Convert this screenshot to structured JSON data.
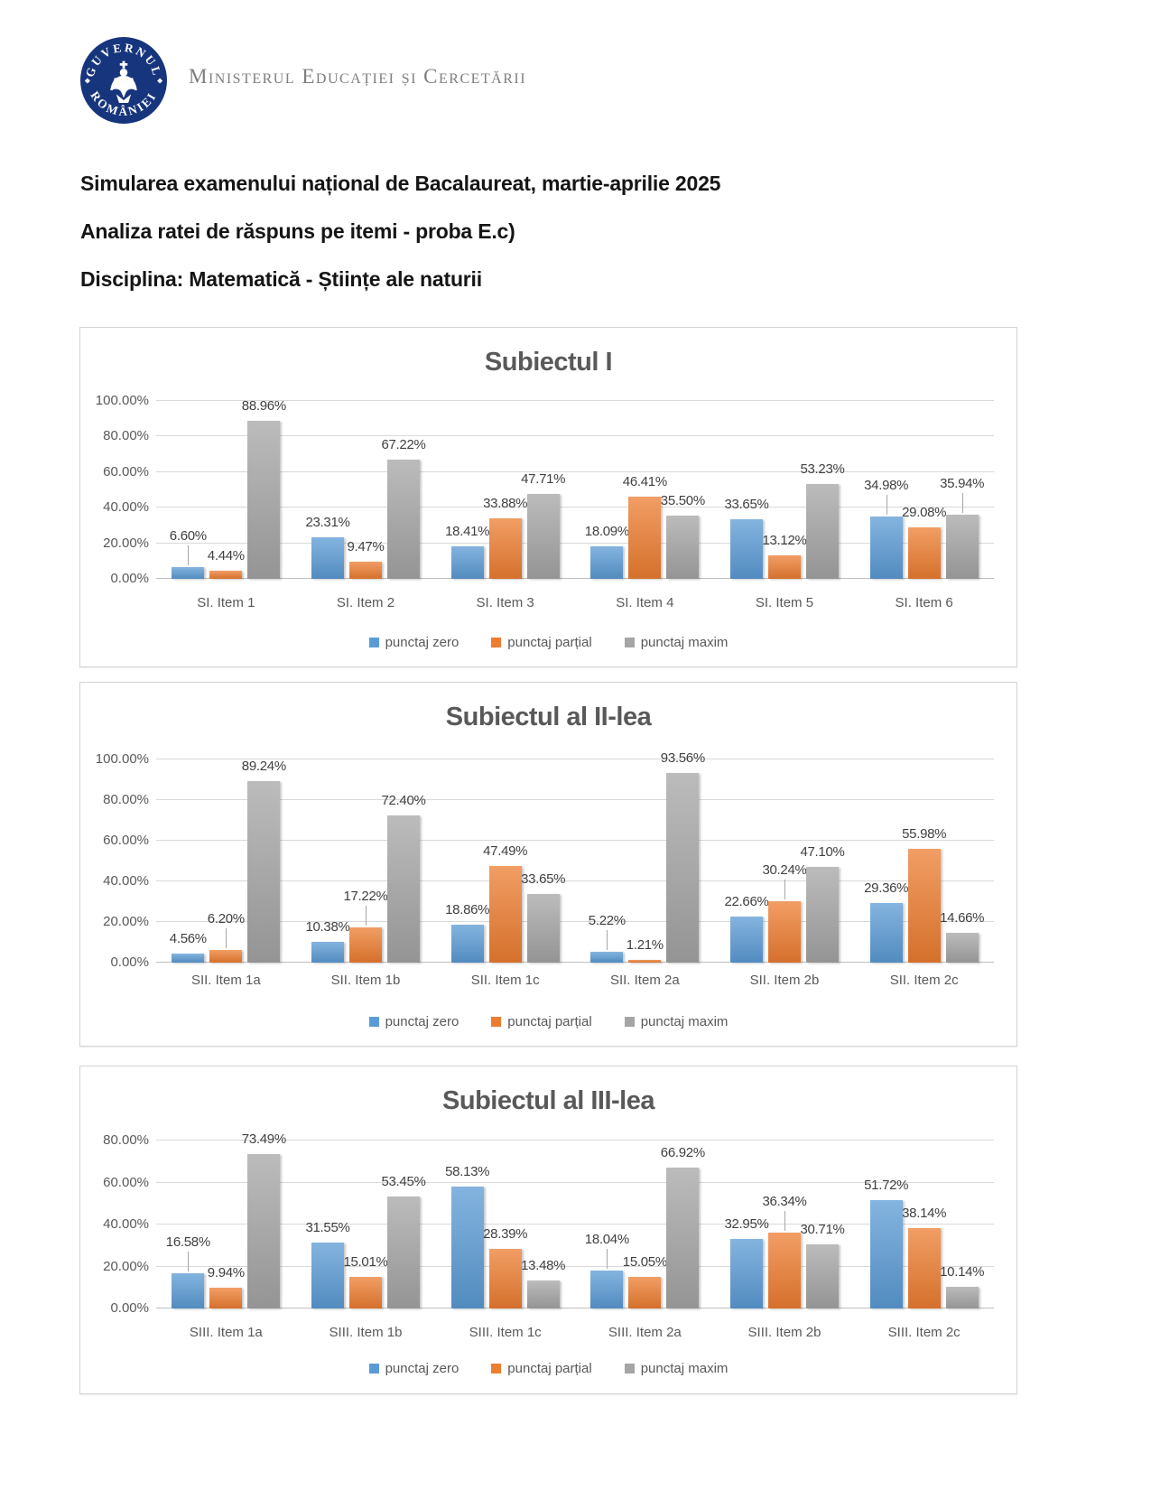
{
  "header": {
    "logo_top": "GUVERNUL",
    "logo_bottom": "ROMÂNIEI",
    "ministry": "Ministerul Educației și Cercetării"
  },
  "titles": [
    "Simularea examenului național de Bacalaureat, martie-aprilie 2025",
    "Analiza ratei de răspuns pe itemi - proba E.c)",
    "Disciplina: Matematică - Științe ale naturii"
  ],
  "colors": {
    "punctaj_zero": "#5B9BD5",
    "punctaj_partial": "#ED7D31",
    "punctaj_maxim": "#A5A5A5"
  },
  "chart_data": [
    {
      "type": "bar",
      "title": "Subiectul I",
      "categories": [
        "SI. Item 1",
        "SI. Item 2",
        "SI. Item 3",
        "SI. Item 4",
        "SI. Item 5",
        "SI. Item 6"
      ],
      "series": [
        {
          "name": "punctaj zero",
          "color": "#5B9BD5",
          "values": [
            6.6,
            23.31,
            18.41,
            18.09,
            33.65,
            34.98
          ]
        },
        {
          "name": "punctaj parțial",
          "color": "#ED7D31",
          "values": [
            4.44,
            9.47,
            33.88,
            46.41,
            13.12,
            29.08
          ]
        },
        {
          "name": "punctaj maxim",
          "color": "#A5A5A5",
          "values": [
            88.96,
            67.22,
            47.71,
            35.5,
            53.23,
            35.94
          ]
        }
      ],
      "ylim": [
        0,
        100
      ],
      "ytick_step": 20,
      "ytick_labels": [
        "0.00%",
        "20.00%",
        "40.00%",
        "60.00%",
        "80.00%",
        "100.00%"
      ],
      "grid": true,
      "legend_position": "bottom",
      "value_label_format": "0.00%"
    },
    {
      "type": "bar",
      "title": "Subiectul al II-lea",
      "categories": [
        "SII. Item 1a",
        "SII. Item 1b",
        "SII. Item 1c",
        "SII. Item 2a",
        "SII. Item 2b",
        "SII. Item 2c"
      ],
      "series": [
        {
          "name": "punctaj zero",
          "color": "#5B9BD5",
          "values": [
            4.56,
            10.38,
            18.86,
            5.22,
            22.66,
            29.36
          ]
        },
        {
          "name": "punctaj parțial",
          "color": "#ED7D31",
          "values": [
            6.2,
            17.22,
            47.49,
            1.21,
            30.24,
            55.98
          ]
        },
        {
          "name": "punctaj maxim",
          "color": "#A5A5A5",
          "values": [
            89.24,
            72.4,
            33.65,
            93.56,
            47.1,
            14.66
          ]
        }
      ],
      "ylim": [
        0,
        100
      ],
      "ytick_step": 20,
      "ytick_labels": [
        "0.00%",
        "20.00%",
        "40.00%",
        "60.00%",
        "80.00%",
        "100.00%"
      ],
      "grid": true,
      "legend_position": "bottom",
      "value_label_format": "0.00%"
    },
    {
      "type": "bar",
      "title": "Subiectul al III-lea",
      "categories": [
        "SIII. Item 1a",
        "SIII. Item 1b",
        "SIII. Item 1c",
        "SIII. Item 2a",
        "SIII. Item 2b",
        "SIII. Item 2c"
      ],
      "series": [
        {
          "name": "punctaj zero",
          "color": "#5B9BD5",
          "values": [
            16.58,
            31.55,
            58.13,
            18.04,
            32.95,
            51.72
          ]
        },
        {
          "name": "punctaj parțial",
          "color": "#ED7D31",
          "values": [
            9.94,
            15.01,
            28.39,
            15.05,
            36.34,
            38.14
          ]
        },
        {
          "name": "punctaj maxim",
          "color": "#A5A5A5",
          "values": [
            73.49,
            53.45,
            13.48,
            66.92,
            30.71,
            10.14
          ]
        }
      ],
      "ylim": [
        0,
        80
      ],
      "ytick_step": 20,
      "ytick_labels": [
        "0.00%",
        "20.00%",
        "40.00%",
        "60.00%",
        "80.00%"
      ],
      "grid": true,
      "legend_position": "bottom",
      "value_label_format": "0.00%"
    }
  ]
}
